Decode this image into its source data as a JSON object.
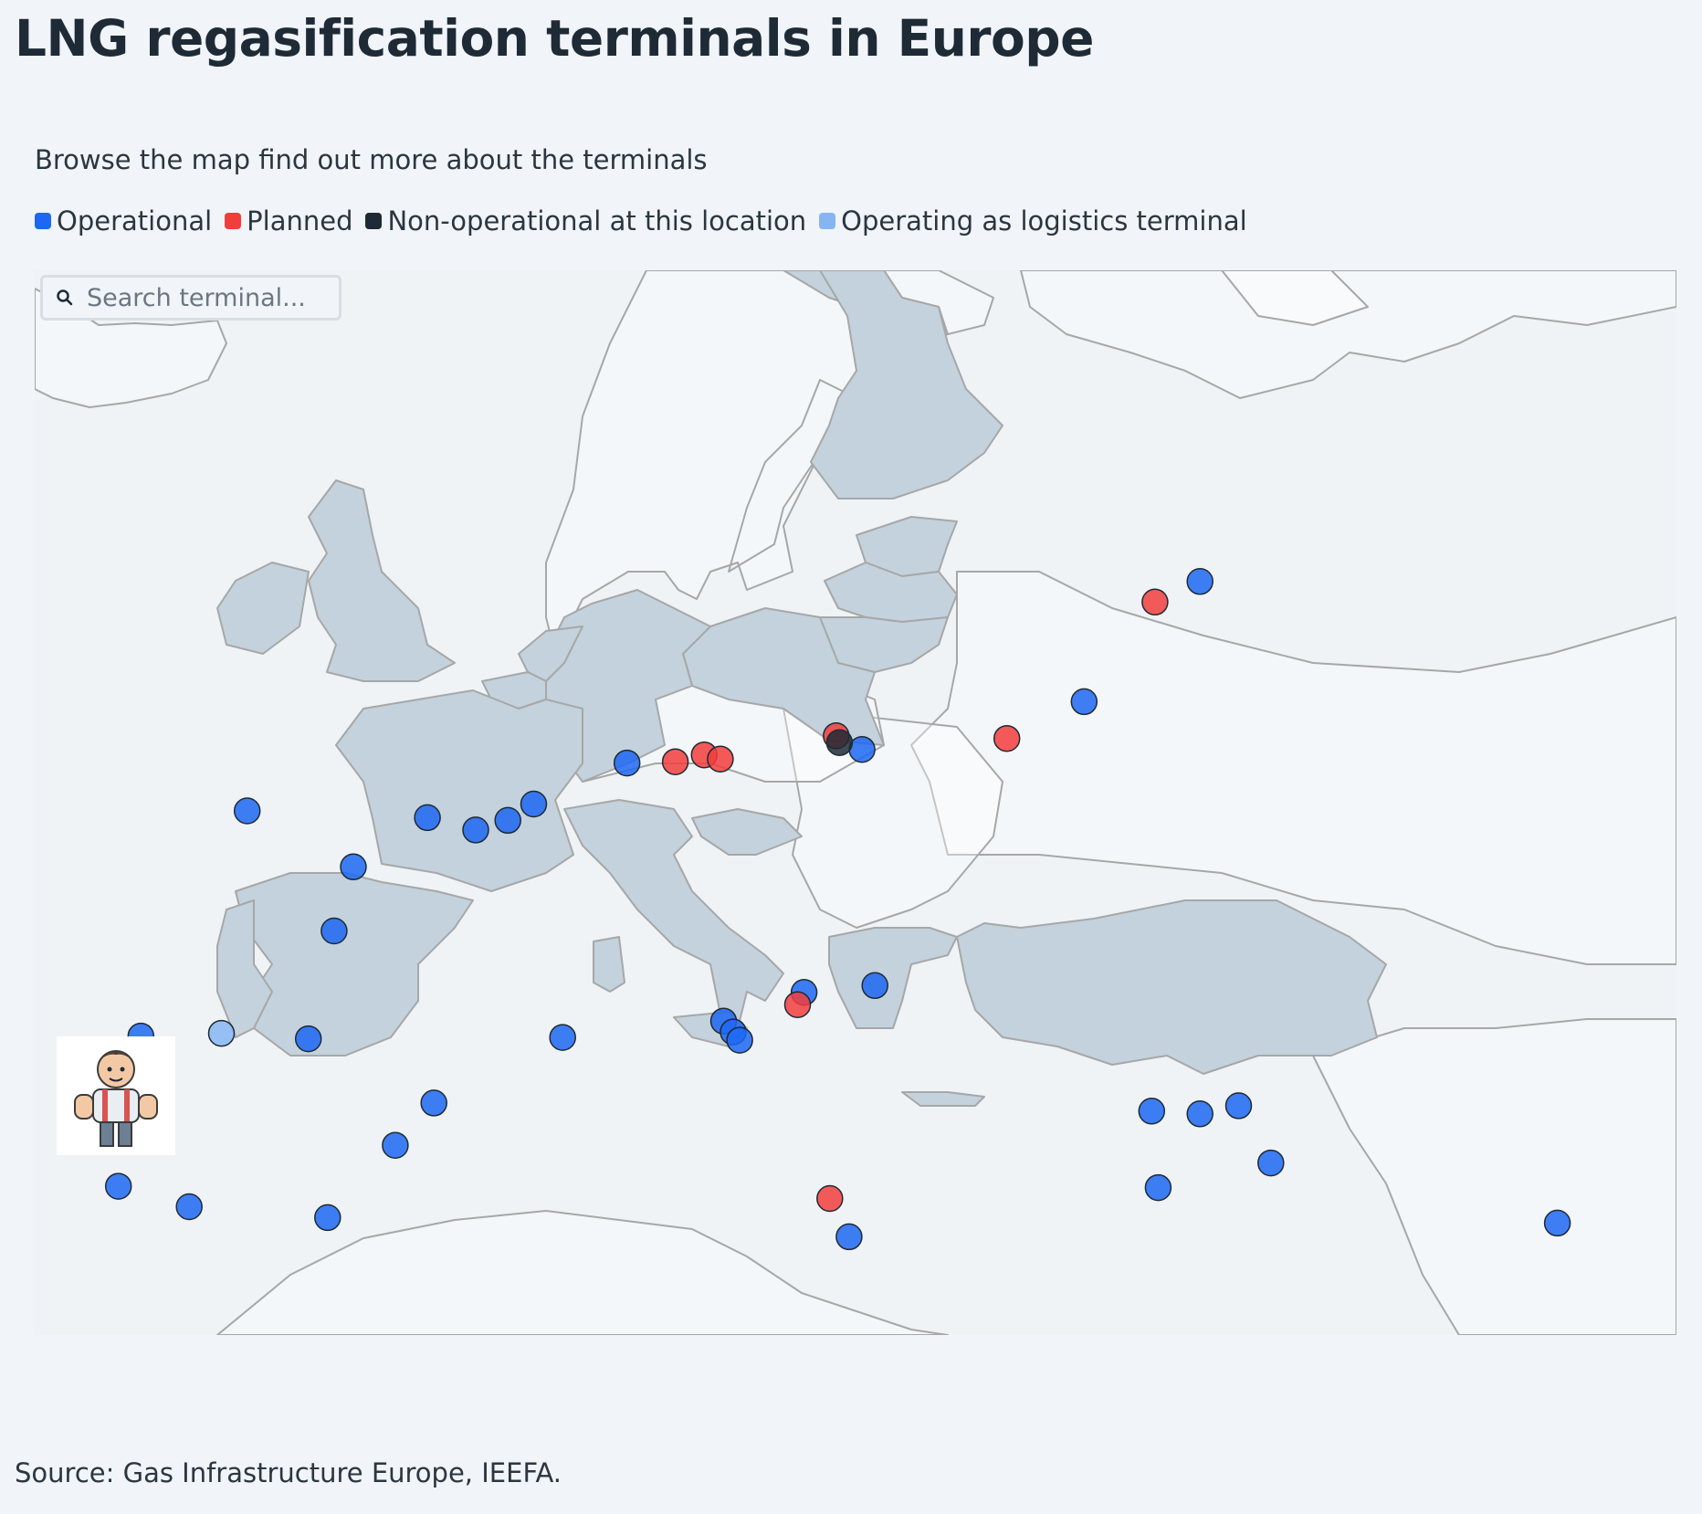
{
  "header": {
    "title": "LNG regasification terminals in Europe",
    "subtitle": "Browse the map find out more about the terminals"
  },
  "legend": [
    {
      "label": "Operational",
      "color": "#1d67f2"
    },
    {
      "label": "Planned",
      "color": "#f23d3d"
    },
    {
      "label": "Non-operational at this location",
      "color": "#1e2a35"
    },
    {
      "label": "Operating as logistics terminal",
      "color": "#86b6f2"
    }
  ],
  "search": {
    "placeholder": "Search terminal...",
    "icon": "search-icon"
  },
  "map": {
    "country_fill": "#c3d2dc",
    "sea_fill": "#eff3f6",
    "border_color": "#a7a7a7",
    "highlighted_countries": [
      "Ireland",
      "United Kingdom",
      "Norway (north)",
      "Finland",
      "Estonia",
      "Latvia",
      "Lithuania",
      "Poland",
      "Germany",
      "Netherlands",
      "Belgium",
      "France",
      "Spain",
      "Portugal",
      "Italy",
      "Croatia",
      "Greece",
      "Türkiye"
    ],
    "terminals": [
      {
        "status": "Operational",
        "lon": -4.9,
        "lat": 51.7
      },
      {
        "status": "Operational",
        "lon": 0.7,
        "lat": 51.45
      },
      {
        "status": "Operational",
        "lon": 2.2,
        "lat": 51.0
      },
      {
        "status": "Operational",
        "lon": 3.2,
        "lat": 51.35
      },
      {
        "status": "Operational",
        "lon": 4.0,
        "lat": 51.95
      },
      {
        "status": "Operational",
        "lon": 6.9,
        "lat": 53.45
      },
      {
        "status": "Operational",
        "lon": -1.6,
        "lat": 49.65
      },
      {
        "status": "Operational",
        "lon": -2.2,
        "lat": 47.3
      },
      {
        "status": "Operational",
        "lon": 4.9,
        "lat": 43.4
      },
      {
        "status": "Operational",
        "lon": 0.9,
        "lat": 41.0
      },
      {
        "status": "Operational",
        "lon": -0.3,
        "lat": 39.45
      },
      {
        "status": "Operational",
        "lon": -8.2,
        "lat": 43.45
      },
      {
        "status": "Operating as logistics terminal",
        "lon": -5.7,
        "lat": 43.55
      },
      {
        "status": "Operational",
        "lon": -3.0,
        "lat": 43.35
      },
      {
        "status": "Operational",
        "lon": -8.9,
        "lat": 37.95
      },
      {
        "status": "Operational",
        "lon": -6.7,
        "lat": 37.2
      },
      {
        "status": "Operational",
        "lon": -2.4,
        "lat": 36.8
      },
      {
        "status": "Operational",
        "lon": 12.4,
        "lat": 45.05
      },
      {
        "status": "Operational",
        "lon": 14.6,
        "lat": 45.3
      },
      {
        "status": "Operational",
        "lon": 9.9,
        "lat": 44.0
      },
      {
        "status": "Operational",
        "lon": 10.2,
        "lat": 43.6
      },
      {
        "status": "Operational",
        "lon": 10.4,
        "lat": 43.3
      },
      {
        "status": "Operational",
        "lon": 13.8,
        "lat": 36.1
      },
      {
        "status": "Operational",
        "lon": 24.7,
        "lat": 60.1
      },
      {
        "status": "Operational",
        "lon": 21.1,
        "lat": 55.7
      },
      {
        "status": "Operational",
        "lon": 14.2,
        "lat": 53.95
      },
      {
        "status": "Operational",
        "lon": 23.2,
        "lat": 40.7
      },
      {
        "status": "Operational",
        "lon": 24.7,
        "lat": 40.6
      },
      {
        "status": "Operational",
        "lon": 25.9,
        "lat": 40.9
      },
      {
        "status": "Operational",
        "lon": 26.9,
        "lat": 38.8
      },
      {
        "status": "Operational",
        "lon": 23.4,
        "lat": 37.9
      },
      {
        "status": "Operational",
        "lon": 35.8,
        "lat": 36.6
      },
      {
        "status": "Planned",
        "lon": 8.4,
        "lat": 53.5
      },
      {
        "status": "Planned",
        "lon": 9.3,
        "lat": 53.75
      },
      {
        "status": "Planned",
        "lon": 9.8,
        "lat": 53.6
      },
      {
        "status": "Planned",
        "lon": 13.4,
        "lat": 54.45
      },
      {
        "status": "Planned",
        "lon": 18.7,
        "lat": 54.35
      },
      {
        "status": "Planned",
        "lon": 23.3,
        "lat": 59.35
      },
      {
        "status": "Planned",
        "lon": 12.2,
        "lat": 44.6
      },
      {
        "status": "Planned",
        "lon": 13.2,
        "lat": 37.5
      },
      {
        "status": "Non-operational at this location",
        "lon": 13.5,
        "lat": 54.2
      }
    ]
  },
  "mascot": {
    "icon": "mascot-icon"
  },
  "source": "Source: Gas Infrastructure Europe, IEEFA."
}
